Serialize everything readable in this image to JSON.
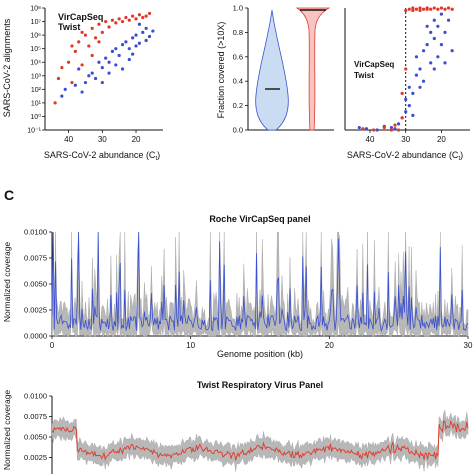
{
  "figure": {
    "panel_c_letter": "C"
  },
  "colors": {
    "vircapseq": "#3a4fd0",
    "twist": "#e0392b",
    "grey_band": "#b8b8b8",
    "violin_blue": "#c9dcf2",
    "violin_red": "#f7c4c4"
  },
  "chart_data": [
    {
      "type": "scatter",
      "xlabel": "SARS-CoV-2 abundance (C",
      "xlabel_sub": "t",
      "xlabel_close": ")",
      "ylabel": "SARS-CoV-2 alignments",
      "x_reversed": true,
      "xlim": [
        47,
        12
      ],
      "xticks": [
        "40",
        "30",
        "20"
      ],
      "ylim_log10": [
        -1,
        8
      ],
      "yticks": [
        "10⁻¹",
        "10⁰",
        "10¹",
        "10²",
        "10³",
        "10⁴",
        "10⁵",
        "10⁶",
        "10⁷",
        "10⁸"
      ],
      "legend": [
        "VirCapSeq",
        "Twist"
      ],
      "series": [
        {
          "name": "VirCapSeq",
          "points": [
            [
              42,
              1.5
            ],
            [
              41,
              2.0
            ],
            [
              38,
              2.3
            ],
            [
              37,
              3.5
            ],
            [
              36,
              1.8
            ],
            [
              35,
              2.5
            ],
            [
              34,
              3.0
            ],
            [
              33,
              3.2
            ],
            [
              32,
              2.8
            ],
            [
              31,
              4.0
            ],
            [
              30,
              3.6
            ],
            [
              29,
              4.3
            ],
            [
              28,
              4.0
            ],
            [
              27,
              4.8
            ],
            [
              26,
              5.0
            ],
            [
              25,
              4.5
            ],
            [
              24,
              5.3
            ],
            [
              23,
              5.5
            ],
            [
              22,
              5.0
            ],
            [
              21,
              5.8
            ],
            [
              20,
              6.0
            ],
            [
              19,
              5.4
            ],
            [
              18,
              6.2
            ],
            [
              17,
              6.5
            ],
            [
              16,
              5.9
            ],
            [
              15,
              6.3
            ],
            [
              24,
              3.5
            ],
            [
              22,
              4.2
            ],
            [
              20,
              5.2
            ],
            [
              26,
              3.8
            ],
            [
              30,
              2.5
            ],
            [
              28,
              3.2
            ],
            [
              19,
              6.8
            ],
            [
              17,
              5.6
            ],
            [
              21,
              4.6
            ]
          ]
        },
        {
          "name": "Twist",
          "points": [
            [
              44,
              1.0
            ],
            [
              43,
              2.8
            ],
            [
              42,
              3.6
            ],
            [
              40,
              4.0
            ],
            [
              39,
              2.5
            ],
            [
              38,
              4.8
            ],
            [
              37,
              5.5
            ],
            [
              36,
              3.8
            ],
            [
              35,
              6.0
            ],
            [
              34,
              5.2
            ],
            [
              33,
              6.5
            ],
            [
              32,
              5.8
            ],
            [
              31,
              6.8
            ],
            [
              30,
              6.2
            ],
            [
              29,
              7.0
            ],
            [
              28,
              6.6
            ],
            [
              27,
              7.1
            ],
            [
              26,
              6.9
            ],
            [
              25,
              7.2
            ],
            [
              24,
              7.0
            ],
            [
              23,
              7.3
            ],
            [
              22,
              7.1
            ],
            [
              21,
              7.4
            ],
            [
              20,
              7.2
            ],
            [
              19,
              7.5
            ],
            [
              18,
              7.3
            ],
            [
              17,
              7.4
            ],
            [
              16,
              7.6
            ],
            [
              33,
              4.5
            ],
            [
              36,
              6.2
            ],
            [
              31,
              5.5
            ],
            [
              39,
              5.2
            ]
          ]
        }
      ]
    },
    {
      "type": "violin",
      "ylabel": "Fraction covered (>10X)",
      "ylim": [
        0,
        1
      ],
      "yticks": [
        "0.0",
        "0.2",
        "0.4",
        "0.6",
        "0.8",
        "1.0"
      ],
      "series": [
        {
          "name": "VirCapSeq",
          "median": 0.34
        },
        {
          "name": "Twist",
          "median": 0.98
        }
      ]
    },
    {
      "type": "scatter",
      "xlabel": "SARS-CoV-2 abundance (C",
      "xlabel_sub": "t",
      "xlabel_close": ")",
      "x_reversed": true,
      "xlim": [
        47,
        12
      ],
      "xticks": [
        "40",
        "30",
        "20"
      ],
      "ylim": [
        0,
        1
      ],
      "threshold_ct": 30,
      "legend": [
        "VirCapSeq",
        "Twist"
      ],
      "series": [
        {
          "name": "VirCapSeq",
          "points": [
            [
              43,
              0.02
            ],
            [
              41,
              0.01
            ],
            [
              38,
              0.0
            ],
            [
              36,
              0.03
            ],
            [
              34,
              0.02
            ],
            [
              33,
              0.01
            ],
            [
              32,
              0.05
            ],
            [
              31,
              0.1
            ],
            [
              30,
              0.15
            ],
            [
              29,
              0.2
            ],
            [
              29,
              0.35
            ],
            [
              28,
              0.3
            ],
            [
              27,
              0.45
            ],
            [
              27,
              0.6
            ],
            [
              26,
              0.5
            ],
            [
              25,
              0.65
            ],
            [
              25,
              0.4
            ],
            [
              24,
              0.7
            ],
            [
              23,
              0.8
            ],
            [
              23,
              0.55
            ],
            [
              22,
              0.75
            ],
            [
              22,
              0.9
            ],
            [
              21,
              0.85
            ],
            [
              21,
              0.6
            ],
            [
              20,
              0.95
            ],
            [
              20,
              0.7
            ],
            [
              19,
              0.8
            ],
            [
              19,
              0.55
            ],
            [
              18,
              0.9
            ],
            [
              17,
              0.65
            ],
            [
              30,
              0.25
            ],
            [
              28,
              0.12
            ],
            [
              26,
              0.35
            ],
            [
              24,
              0.85
            ],
            [
              22,
              0.5
            ]
          ]
        },
        {
          "name": "Twist",
          "points": [
            [
              42,
              0.01
            ],
            [
              39,
              0.0
            ],
            [
              36,
              0.02
            ],
            [
              34,
              0.0
            ],
            [
              33,
              0.04
            ],
            [
              32,
              0.0
            ],
            [
              31,
              0.1
            ],
            [
              30,
              0.98
            ],
            [
              29,
              0.99
            ],
            [
              28,
              0.98
            ],
            [
              27,
              0.99
            ],
            [
              26,
              1.0
            ],
            [
              25,
              0.99
            ],
            [
              24,
              1.0
            ],
            [
              23,
              0.99
            ],
            [
              22,
              1.0
            ],
            [
              21,
              0.99
            ],
            [
              20,
              1.0
            ],
            [
              19,
              0.99
            ],
            [
              18,
              1.0
            ],
            [
              17,
              0.99
            ],
            [
              30,
              0.5
            ],
            [
              31,
              0.3
            ],
            [
              28,
              1.0
            ],
            [
              26,
              0.98
            ],
            [
              24,
              0.99
            ]
          ]
        }
      ]
    },
    {
      "type": "line",
      "title": "Roche VirCapSeq panel",
      "xlabel": "Genome position (kb)",
      "ylabel": "Normalized coverage",
      "xlim": [
        0,
        30
      ],
      "ylim": [
        0,
        0.01
      ],
      "xticks": [
        "0",
        "10",
        "20",
        "30"
      ],
      "yticks": [
        "0.0000",
        "0.0025",
        "0.0050",
        "0.0075",
        "0.0100"
      ]
    },
    {
      "type": "line",
      "title": "Twist Respiratory Virus Panel",
      "ylabel": "Normalized coverage",
      "xlim": [
        0,
        30
      ],
      "ylim": [
        0,
        0.01
      ],
      "yticks": [
        "0.0025",
        "0.0050",
        "0.0075",
        "0.0100"
      ]
    }
  ]
}
